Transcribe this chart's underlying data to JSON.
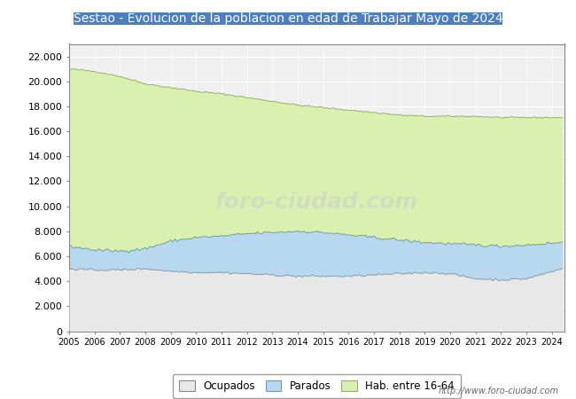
{
  "title": "Sestao - Evolucion de la poblacion en edad de Trabajar Mayo de 2024",
  "title_bg_color": "#4d7ebf",
  "title_text_color": "#ffffff",
  "background_color": "#ffffff",
  "plot_bg_color": "#f0f0f0",
  "grid_color": "#ffffff",
  "hab_color": "#d9f0b0",
  "hab_edge_color": "#8ab84a",
  "parados_color": "#b8d8f0",
  "parados_edge_color": "#6699cc",
  "ocupados_color": "#e8e8e8",
  "ocupados_edge_color": "#999999",
  "url_text": "http://www.foro-ciudad.com",
  "ylim": [
    0,
    23000
  ],
  "yticks": [
    0,
    2000,
    4000,
    6000,
    8000,
    10000,
    12000,
    14000,
    16000,
    18000,
    20000,
    22000
  ],
  "xmin": 2005,
  "xmax": 2024.5,
  "watermark": "foro-ciudad.com"
}
